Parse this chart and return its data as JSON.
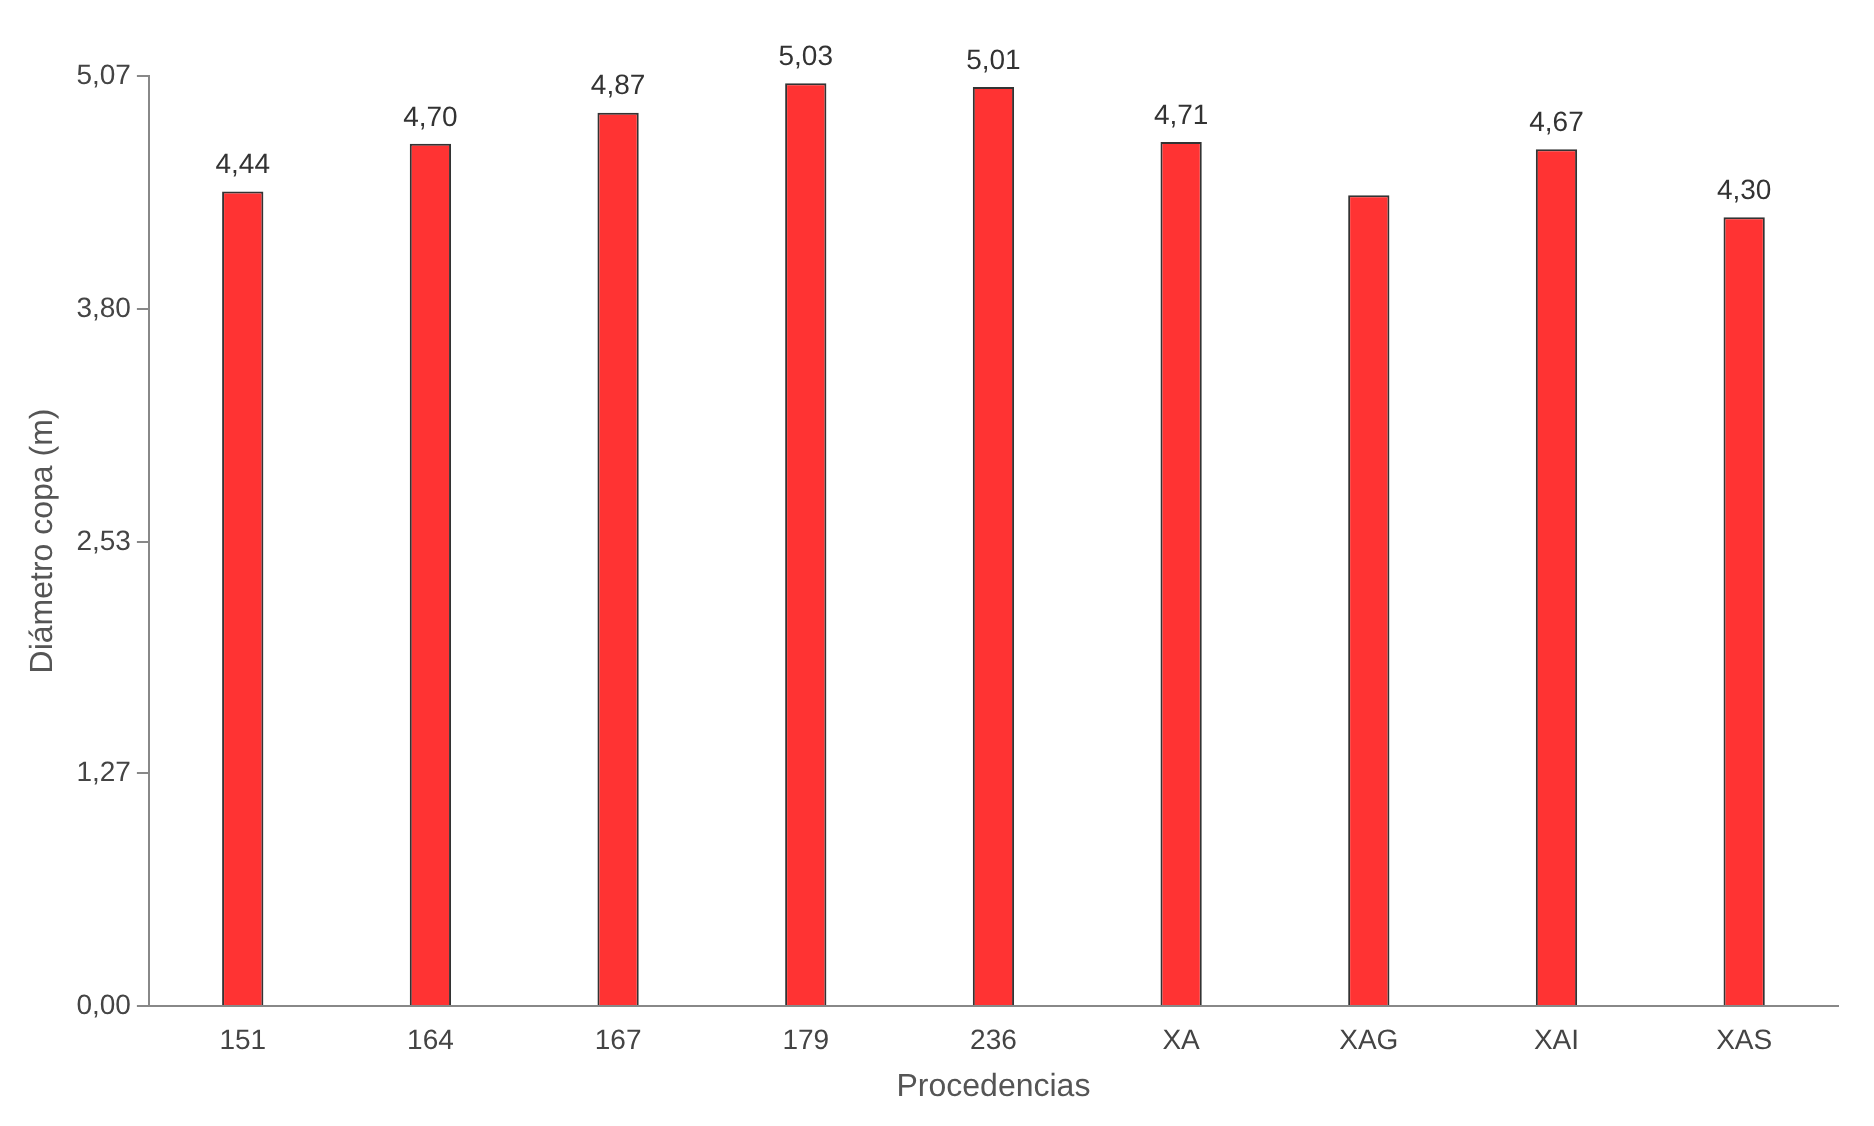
{
  "chart_data": {
    "type": "bar",
    "xlabel": "Procedencias",
    "ylabel": "Diámetro copa (m)",
    "categories": [
      "151",
      "164",
      "167",
      "179",
      "236",
      "XA",
      "XAG",
      "XAI",
      "XAS"
    ],
    "values": [
      4.44,
      4.7,
      4.87,
      5.03,
      5.01,
      4.71,
      4.42,
      4.67,
      4.3
    ],
    "value_labels": [
      "4,44",
      "4,70",
      "4,87",
      "5,03",
      "5,01",
      "4,71",
      null,
      "4,67",
      "4,30"
    ],
    "color": "#ff3333",
    "ylim": [
      0,
      5.07
    ],
    "yticks": [
      {
        "value": 0,
        "label": "0,00"
      },
      {
        "value": 1.27,
        "label": "1,27"
      },
      {
        "value": 2.53,
        "label": "2,53"
      },
      {
        "value": 3.8,
        "label": "3,80"
      },
      {
        "value": 5.07,
        "label": "5,07"
      }
    ],
    "grid": false,
    "legend": false
  }
}
